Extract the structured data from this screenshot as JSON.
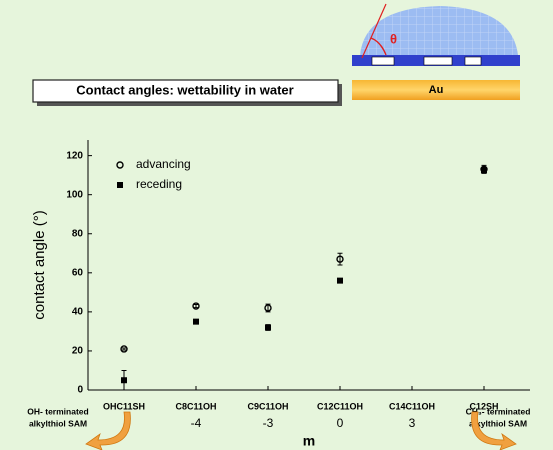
{
  "banner": "Contact angles: wettability in water",
  "diagram": {
    "angle_label": "θ",
    "substrate_label": "Au"
  },
  "annotations": {
    "left": [
      "OH- terminated",
      "alkylthiol SAM"
    ],
    "right": [
      "CH₃- terminated",
      "alkylthiol SAM"
    ]
  },
  "chart_data": {
    "type": "scatter",
    "categories": [
      "OHC11SH",
      "C8C11OH",
      "C9C11OH",
      "C12C11OH",
      "C14C11OH",
      "C12SH"
    ],
    "m_values": [
      null,
      "-4",
      "-3",
      "0",
      "3",
      null
    ],
    "x_label": "m",
    "y_label": "contact angle (°)",
    "ylim": [
      0,
      128
    ],
    "yticks": [
      0,
      20,
      40,
      60,
      80,
      100,
      120
    ],
    "legend": "top-left",
    "series": [
      {
        "name": "advancing",
        "marker": "open-circle",
        "color": "#000000",
        "values": [
          21,
          43,
          42,
          67,
          null,
          113
        ],
        "errors": [
          0.5,
          0.8,
          2,
          3,
          null,
          2
        ]
      },
      {
        "name": "receding",
        "marker": "filled-square",
        "color": "#000000",
        "values": [
          5,
          35,
          32,
          56,
          null,
          112.5
        ],
        "errors": [
          5,
          1,
          1.5,
          0.5,
          null,
          1.5
        ]
      }
    ]
  }
}
